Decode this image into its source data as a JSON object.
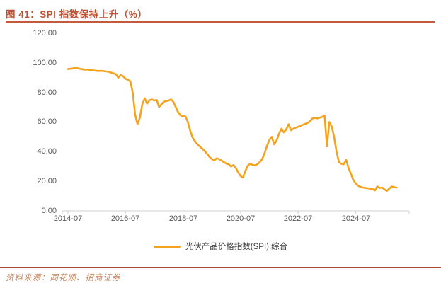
{
  "figure": {
    "title": "图 41：SPI 指数保持上升（%）",
    "source": "资料来源：同花顺、招商证券"
  },
  "colors": {
    "accent_title": "#BE5233",
    "series_orange": "#F5A31E",
    "axis_gray": "#D9D9D9",
    "tick_text_gray": "#595959",
    "source_text": "#C4835B"
  },
  "chart_data": {
    "type": "line",
    "title": "图 41：SPI 指数保持上升（%）",
    "xlabel": "",
    "ylabel": "",
    "ylim": [
      0,
      120
    ],
    "grid": false,
    "legend_position": "bottom-center",
    "yticks": [
      "120.00",
      "100.00",
      "80.00",
      "60.00",
      "40.00",
      "20.00",
      "0.00"
    ],
    "xticks": [
      "2014-07",
      "2016-07",
      "2018-07",
      "2020-07",
      "2022-07",
      "2024-07"
    ],
    "legend": [
      {
        "label": "光伏产品价格指数(SPI):综合",
        "color": "#F5A31E"
      }
    ],
    "series": [
      {
        "name": "光伏产品价格指数(SPI):综合",
        "x_start": "2014-07",
        "x_interval": "monthly",
        "x_end": "2025-12",
        "values": [
          95.8,
          96.0,
          96.3,
          96.6,
          96.4,
          96.0,
          95.7,
          95.4,
          95.5,
          95.2,
          95.0,
          94.8,
          94.6,
          94.5,
          94.6,
          94.4,
          94.2,
          94.0,
          93.4,
          92.8,
          92.3,
          90.0,
          91.8,
          91.0,
          89.2,
          88.6,
          87.5,
          80.0,
          65.0,
          58.5,
          63.0,
          72.0,
          76.0,
          72.5,
          74.8,
          75.2,
          74.6,
          74.9,
          70.2,
          72.0,
          73.8,
          74.2,
          74.6,
          75.3,
          73.5,
          70.0,
          66.5,
          64.5,
          64.0,
          63.8,
          60.0,
          54.0,
          49.5,
          47.0,
          45.0,
          43.5,
          42.0,
          40.5,
          38.5,
          36.5,
          35.0,
          34.0,
          35.5,
          35.0,
          34.0,
          33.0,
          32.0,
          31.5,
          30.0,
          31.0,
          29.0,
          26.0,
          23.5,
          22.5,
          27.0,
          30.5,
          32.0,
          31.0,
          30.8,
          31.5,
          33.0,
          35.0,
          39.0,
          44.0,
          48.0,
          50.0,
          45.0,
          47.5,
          52.0,
          55.5,
          53.0,
          55.0,
          58.5,
          54.5,
          55.5,
          56.2,
          56.8,
          57.5,
          58.2,
          58.8,
          59.5,
          60.5,
          62.5,
          62.8,
          62.5,
          63.0,
          63.5,
          64.5,
          43.5,
          60.0,
          57.0,
          50.0,
          40.0,
          33.0,
          31.8,
          31.5,
          34.5,
          29.0,
          25.0,
          21.0,
          18.5,
          17.0,
          16.2,
          15.8,
          15.5,
          15.3,
          15.0,
          14.8,
          13.8,
          16.5,
          15.5,
          15.8,
          14.5,
          13.5,
          15.0,
          16.5,
          16.0,
          15.8
        ]
      }
    ]
  }
}
